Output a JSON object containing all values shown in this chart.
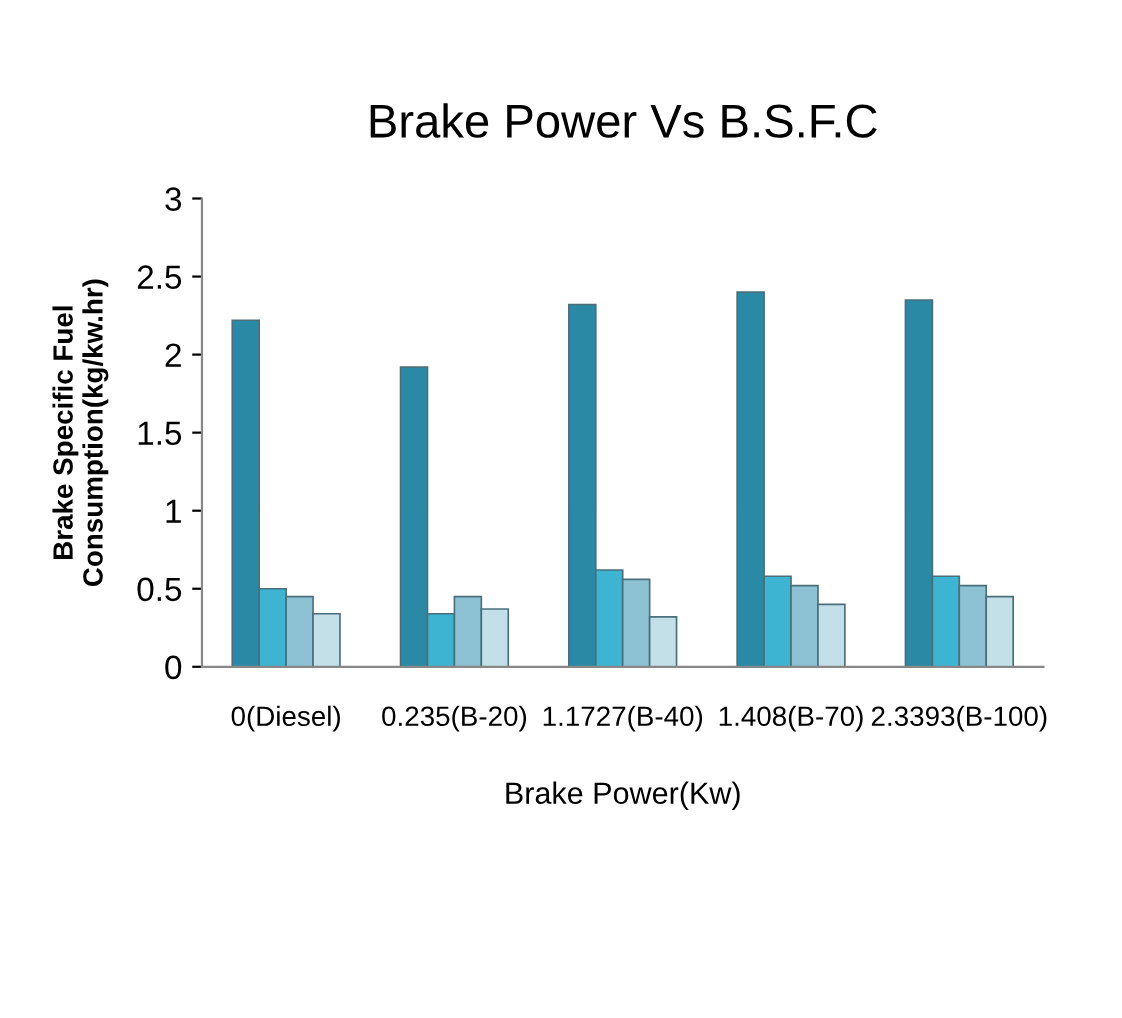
{
  "chart_data": {
    "type": "bar",
    "title": "Brake Power Vs B.S.F.C",
    "xlabel": "Brake Power(Kw)",
    "ylabel": "Brake Specific Fuel\nConsumption(kg/kw.hr)",
    "categories": [
      "0(Diesel)",
      "0.235(B-20)",
      "1.1727(B-40)",
      "1.408(B-70)",
      "2.3393(B-100)"
    ],
    "series": [
      {
        "color": "#2a8aa6",
        "values": [
          2.22,
          1.92,
          2.32,
          2.4,
          2.35
        ]
      },
      {
        "color": "#3cb4d2",
        "values": [
          0.5,
          0.34,
          0.62,
          0.58,
          0.58
        ]
      },
      {
        "color": "#8cc2d4",
        "values": [
          0.45,
          0.45,
          0.56,
          0.52,
          0.52
        ]
      },
      {
        "color": "#c3dfe8",
        "values": [
          0.34,
          0.37,
          0.32,
          0.4,
          0.45
        ]
      }
    ],
    "ylim": [
      0,
      3
    ],
    "yticks": [
      0,
      0.5,
      1,
      1.5,
      2,
      2.5,
      3
    ],
    "grid": false,
    "legend": false
  }
}
